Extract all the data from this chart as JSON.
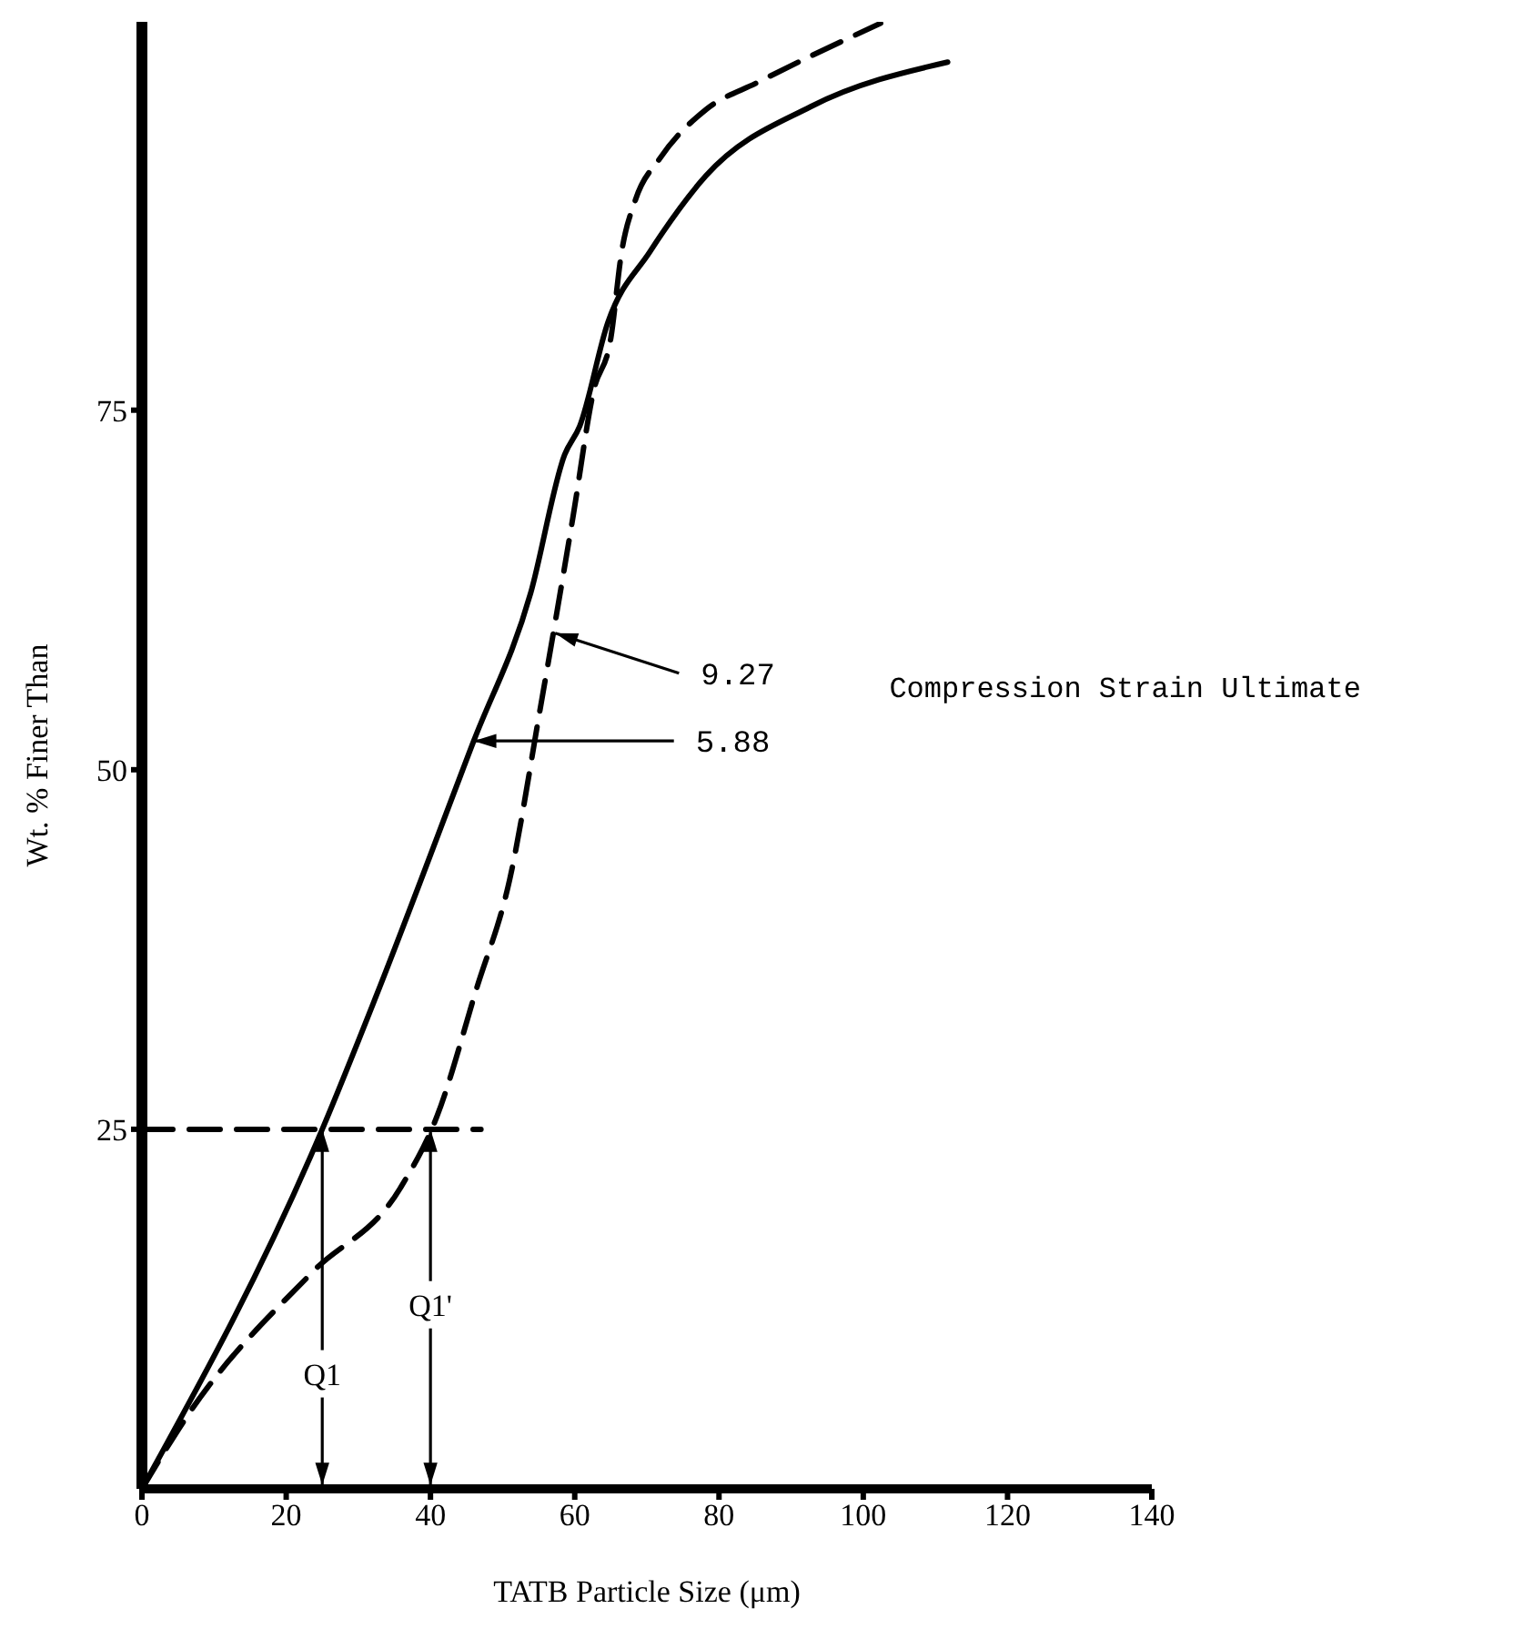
{
  "chart_data": {
    "type": "line",
    "xlabel": "TATB Particle Size (μm)",
    "ylabel": "Wt. % Finer Than",
    "xlim": [
      0,
      140
    ],
    "xticks": [
      0,
      20,
      40,
      60,
      80,
      100,
      120,
      140
    ],
    "ylim": [
      0,
      102
    ],
    "yticks": [
      25,
      50,
      75
    ],
    "marker": "none",
    "series": [
      {
        "color": "#000000",
        "line_style": "solid",
        "x": [
          0,
          25,
          32.5,
          46,
          53.9,
          58.6,
          60.7,
          64.6,
          70.4,
          78.2,
          92.7,
          111.7
        ],
        "values": [
          0,
          25,
          34.3,
          52,
          62.3,
          71.9,
          73.9,
          81.1,
          86,
          91.3,
          96.1,
          99.2
        ]
      },
      {
        "color": "#000000",
        "line_style": "dashed",
        "x": [
          0,
          6.6,
          23.7,
          35.8,
          40.9,
          46.4,
          51,
          55.2,
          59.8,
          62.6,
          65,
          66.5,
          68.4,
          71.8,
          78.2,
          85.4,
          102.4
        ],
        "values": [
          0,
          5.3,
          15.1,
          20.9,
          25.9,
          34.8,
          42.4,
          54.2,
          67.7,
          76.3,
          80,
          86,
          89.6,
          92.5,
          95.9,
          97.8,
          101.9
        ]
      },
      {
        "color": "#000000",
        "line_style": "dashed",
        "x": [
          0,
          47
        ],
        "values": [
          25,
          25
        ]
      }
    ],
    "annotations": [
      {
        "text": "9.27",
        "x": 57.3,
        "y": 59.5
      },
      {
        "text": "5.88",
        "x": 46,
        "y": 52
      },
      "Compression Strain Ultimate",
      {
        "text": "Q1",
        "x": 25,
        "y": 8
      },
      {
        "text": "Q1'",
        "x": 40,
        "y": 12.8
      }
    ]
  }
}
